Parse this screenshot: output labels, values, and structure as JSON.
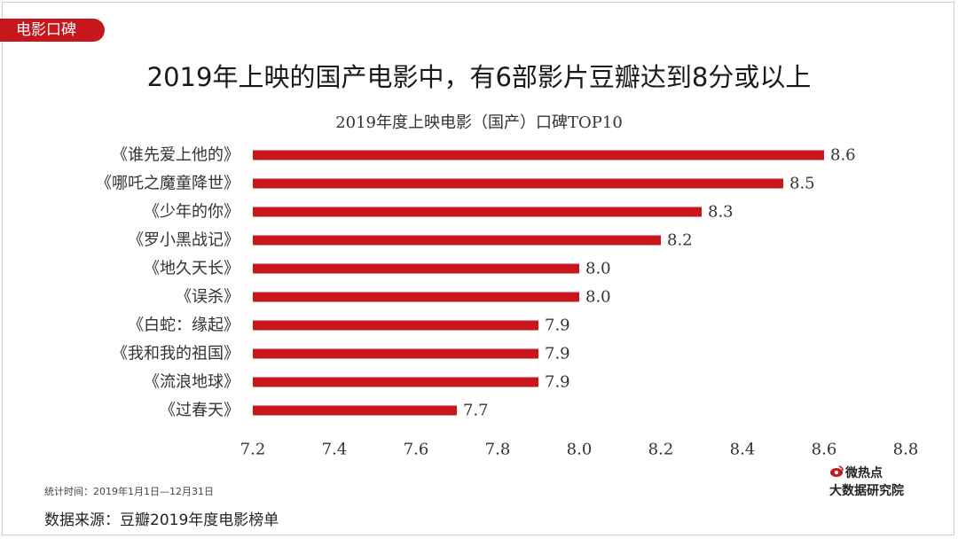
{
  "header": {
    "tag": "电影口碑",
    "title": "2019年上映的国产电影中，有6部影片豆瓣达到8分或以上"
  },
  "chart_data": {
    "type": "bar",
    "orientation": "horizontal",
    "title": "2019年度上映电影（国产）口碑TOP10",
    "categories": [
      "《谁先爱上他的》",
      "《哪吒之魔童降世》",
      "《少年的你》",
      "《罗小黑战记》",
      "《地久天长》",
      "《误杀》",
      "《白蛇：缘起》",
      "《我和我的祖国》",
      "《流浪地球》",
      "《过春天》"
    ],
    "values": [
      8.6,
      8.5,
      8.3,
      8.2,
      8.0,
      8.0,
      7.9,
      7.9,
      7.9,
      7.7
    ],
    "value_labels": [
      "8.6",
      "8.5",
      "8.3",
      "8.2",
      "8.0",
      "8.0",
      "7.9",
      "7.9",
      "7.9",
      "7.7"
    ],
    "xlim": [
      7.2,
      8.8
    ],
    "xticks": [
      "7.2",
      "7.4",
      "7.6",
      "7.8",
      "8.0",
      "8.2",
      "8.4",
      "8.6",
      "8.8"
    ],
    "bar_color": "#c8161d",
    "grid": false,
    "legend": false
  },
  "footer": {
    "stat_time": "统计时间：2019年1月1日—12月31日",
    "source": "数据来源：豆瓣2019年度电影榜单"
  },
  "logo": {
    "line1": "微热点",
    "line2": "大数据研究院",
    "icon": "weibo-eye-icon",
    "color": "#c8161d"
  }
}
